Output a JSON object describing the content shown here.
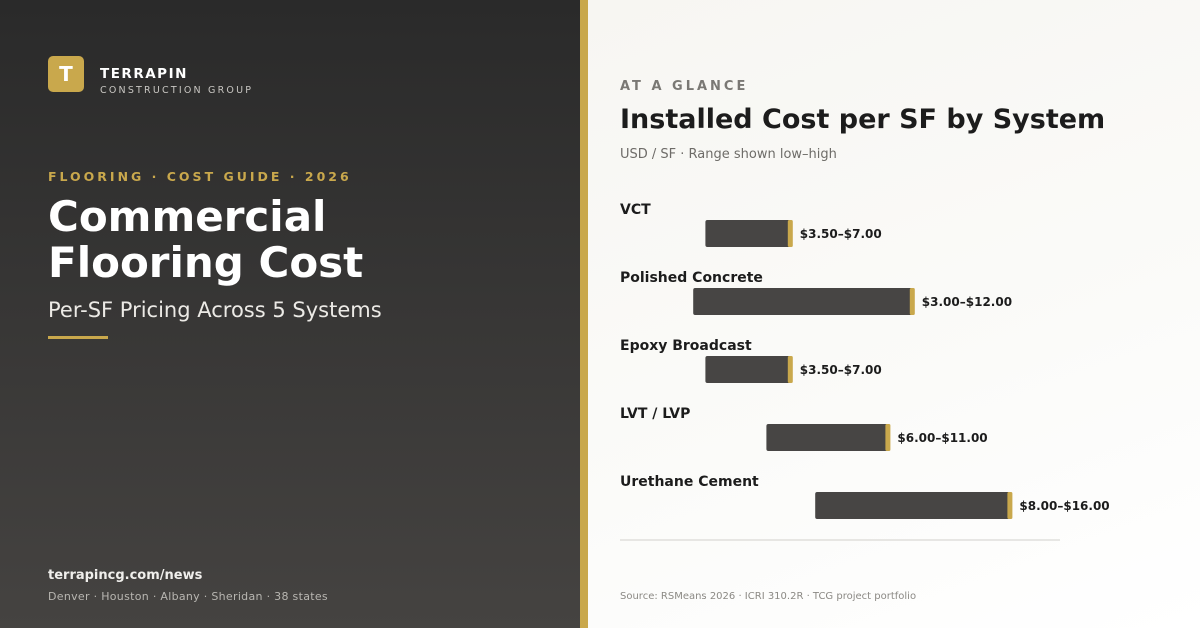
{
  "brand": {
    "logo_letter": "T",
    "name": "TERRAPIN",
    "subtitle": "CONSTRUCTION GROUP"
  },
  "hero": {
    "eyebrow": "FLOORING · COST GUIDE · 2026",
    "headline_line1": "Commercial",
    "headline_line2": "Flooring Cost",
    "subhead": "Per-SF Pricing Across 5 Systems"
  },
  "footer_left": {
    "site": "terrapincg.com/news",
    "locations": "Denver · Houston · Albany · Sheridan · 38 states"
  },
  "panel": {
    "kicker": "AT A GLANCE",
    "source": "Source: RSMeans 2026 · ICRI 310.2R · TCG project portfolio"
  },
  "colors": {
    "accent": "#c9a84c",
    "bar": "#474544",
    "dark_bg": "#2a2a2a",
    "light_bg": "#f9f8f5"
  },
  "chart_data": {
    "type": "bar",
    "orientation": "horizontal-range",
    "title": "Installed Cost per SF by System",
    "subtitle": "USD / SF · Range shown low–high",
    "xlim": [
      0,
      16
    ],
    "unit": "USD/SF",
    "categories": [
      "VCT",
      "Polished Concrete",
      "Epoxy Broadcast",
      "LVT / LVP",
      "Urethane Cement"
    ],
    "series": [
      {
        "ranges": [
          [
            3.5,
            7.0
          ],
          [
            3.0,
            12.0
          ],
          [
            3.5,
            7.0
          ],
          [
            6.0,
            11.0
          ],
          [
            8.0,
            16.0
          ]
        ],
        "labels": [
          "$3.50–$7.00",
          "$3.00–$12.00",
          "$3.50–$7.00",
          "$6.00–$11.00",
          "$8.00–$16.00"
        ]
      }
    ],
    "grid": false,
    "legend": "none"
  }
}
